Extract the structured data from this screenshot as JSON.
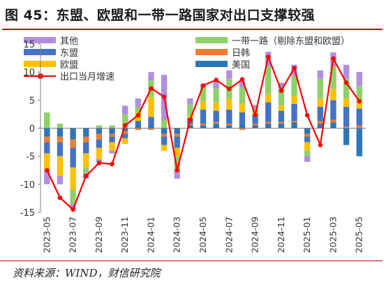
{
  "title": "图 45：东盟、欧盟和一带一路国家对出口支撑较强",
  "source": "资料来源：WIND，财信研究院",
  "colors": {
    "others": "#b18fde",
    "asean": "#4472c4",
    "eu": "#ffc000",
    "beltroad": "#8ed06a",
    "japankorea": "#ed7d31",
    "usa": "#2e75b6",
    "line": "#ff0000",
    "axis": "#808080",
    "text": "#333333"
  },
  "legend": {
    "others": "其他",
    "asean": "东盟",
    "eu": "欧盟",
    "beltroad": "一带一路（剔除东盟和欧盟）",
    "japankorea": "日韩",
    "usa": "美国",
    "line": "出口当月增速"
  },
  "chart_data": {
    "type": "bar",
    "stacked": true,
    "categories": [
      "2023-05",
      "2023-06",
      "2023-07",
      "2023-08",
      "2023-09",
      "2023-10",
      "2023-11",
      "2023-12",
      "2024-01",
      "2024-02",
      "2024-03",
      "2024-04",
      "2024-05",
      "2024-06",
      "2024-07",
      "2024-08",
      "2024-09",
      "2024-10",
      "2024-11",
      "2024-12",
      "2025-01",
      "2025-02",
      "2025-03",
      "2025-04",
      "2025-05"
    ],
    "tick_labels": [
      "2023-05",
      "2023-07",
      "2023-09",
      "2023-11",
      "2024-01",
      "2024-03",
      "2024-05",
      "2024-07",
      "2024-09",
      "2024-11",
      "2025-01",
      "2025-03",
      "2025-05"
    ],
    "ylim": [
      -15,
      15
    ],
    "yticks": [
      -15,
      -10,
      -5,
      0,
      5,
      10,
      15
    ],
    "series": [
      {
        "name": "美国",
        "key": "usa",
        "values": [
          -1.5,
          -1.5,
          -2.0,
          -1.5,
          -1.0,
          -1.0,
          -0.5,
          0.8,
          0.5,
          -1.0,
          -1.0,
          0.5,
          0.5,
          0.8,
          0.5,
          0.8,
          0.5,
          0.8,
          0.8,
          1.0,
          -1.0,
          0.8,
          1.0,
          -3.0,
          -5.0
        ]
      },
      {
        "name": "日韩",
        "key": "japankorea",
        "values": [
          -1.0,
          -1.0,
          -1.5,
          -1.0,
          -1.0,
          -0.5,
          -0.5,
          -0.3,
          -0.3,
          -0.5,
          -0.5,
          0.3,
          0.3,
          0.3,
          0.3,
          -0.3,
          0.3,
          0.3,
          0.3,
          0.3,
          -0.5,
          0.5,
          0.5,
          0.3,
          0.5
        ]
      },
      {
        "name": "东盟",
        "key": "asean",
        "values": [
          -2.0,
          -2.5,
          -3.5,
          -2.0,
          -1.5,
          -1.0,
          -0.8,
          0.5,
          1.5,
          -1.5,
          -2.0,
          1.0,
          2.5,
          2.0,
          2.5,
          2.0,
          1.5,
          3.5,
          2.0,
          3.0,
          -1.0,
          2.5,
          3.5,
          3.5,
          3.0
        ]
      },
      {
        "name": "欧盟",
        "key": "eu",
        "values": [
          -3.0,
          -3.5,
          -4.0,
          -2.5,
          -2.0,
          -1.5,
          -1.0,
          1.5,
          3.5,
          -1.0,
          -1.5,
          0.5,
          1.5,
          1.5,
          2.0,
          1.5,
          0.5,
          1.5,
          1.0,
          1.5,
          -1.5,
          1.5,
          2.0,
          1.5,
          1.5
        ]
      },
      {
        "name": "一带一路（剔除东盟和欧盟）",
        "key": "beltroad",
        "values": [
          2.8,
          0.8,
          -2.5,
          -1.0,
          0.5,
          0.5,
          2.5,
          1.0,
          3.0,
          1.5,
          -2.5,
          2.0,
          2.5,
          2.5,
          3.5,
          3.0,
          0.8,
          5.0,
          3.0,
          3.5,
          -1.0,
          3.5,
          4.0,
          3.5,
          2.5
        ]
      },
      {
        "name": "其他",
        "key": "others",
        "values": [
          -2.5,
          -1.5,
          -1.0,
          -1.0,
          -0.5,
          -0.5,
          1.5,
          1.5,
          1.5,
          8.0,
          -1.5,
          1.0,
          0.5,
          1.2,
          1.5,
          1.2,
          0.5,
          2.5,
          1.0,
          2.0,
          -1.0,
          1.5,
          2.5,
          2.5,
          2.5
        ]
      }
    ],
    "line": {
      "name": "出口当月增速",
      "values": [
        -7.5,
        -12.4,
        -14.5,
        -8.5,
        -6.2,
        -6.4,
        0.5,
        2.3,
        7.1,
        5.6,
        -7.5,
        1.5,
        7.6,
        8.6,
        7.0,
        8.7,
        2.4,
        12.7,
        6.7,
        10.7,
        2.3,
        -3.0,
        12.4,
        8.1,
        4.8
      ]
    }
  }
}
